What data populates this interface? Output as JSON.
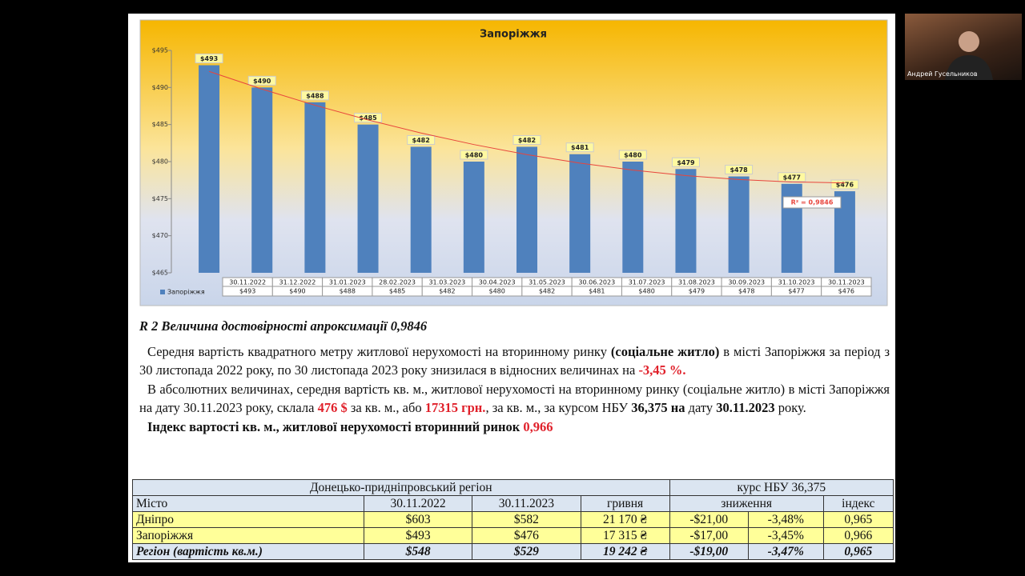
{
  "chart_data": {
    "type": "bar",
    "title": "Запоріжжя",
    "categories": [
      "30.11.2022",
      "31.12.2022",
      "31.01.2023",
      "28.02.2023",
      "31.03.2023",
      "30.04.2023",
      "31.05.2023",
      "30.06.2023",
      "31.07.2023",
      "31.08.2023",
      "30.09.2023",
      "31.10.2023",
      "30.11.2023"
    ],
    "series": [
      {
        "name": "Запоріжжя",
        "color": "#4f81bd",
        "values": [
          493,
          490,
          488,
          485,
          482,
          480,
          482,
          481,
          480,
          479,
          478,
          477,
          476
        ],
        "value_labels": [
          "$493",
          "$490",
          "$488",
          "$485",
          "$482",
          "$480",
          "$482",
          "$481",
          "$480",
          "$479",
          "$478",
          "$477",
          "$476"
        ]
      }
    ],
    "ylim": [
      465,
      495
    ],
    "yticks": [
      {
        "value": 465,
        "label": "$465"
      },
      {
        "value": 470,
        "label": "$470"
      },
      {
        "value": 475,
        "label": "$475"
      },
      {
        "value": 480,
        "label": "$480"
      },
      {
        "value": 485,
        "label": "$485"
      },
      {
        "value": 490,
        "label": "$490"
      },
      {
        "value": 495,
        "label": "$495"
      }
    ],
    "trendline": {
      "type": "polynomial",
      "color": "#e8453c",
      "label": "R² = 0,9846"
    }
  },
  "text": {
    "heading": "R 2 Величина достовірності апроксимації 0,9846",
    "paragraphs": [
      [
        {
          "t": "Середня вартість квадратного метру житлової нерухомості на вторинному ринку "
        },
        {
          "t": "(соціальне житло)",
          "s": "bold"
        },
        {
          "t": " в місті Запоріжжя за період з 30 листопада  2022 року, по 30 листопада 2023 року знизилася в відносних величинах на "
        },
        {
          "t": "-3,45 %.",
          "s": "red"
        }
      ],
      [
        {
          "t": "В абсолютних величинах, середня вартість кв. м., житлової нерухомості на вторинному ринку (соціальне житло) в місті Запоріжжя на дату 30.11.2023 року, склала "
        },
        {
          "t": "476 $",
          "s": "red"
        },
        {
          "t": " за кв. м., або "
        },
        {
          "t": "17315 грн.",
          "s": "red"
        },
        {
          "t": ", за кв. м., за курсом НБУ "
        },
        {
          "t": "36,375 на",
          "s": "bold"
        },
        {
          "t": " дату "
        },
        {
          "t": "30.11.2023",
          "s": "bold"
        },
        {
          "t": " року."
        }
      ],
      [
        {
          "t": "Індекс вартості кв. м., житлової нерухомості вторинний ринок ",
          "s": "bold"
        },
        {
          "t": "0,966",
          "s": "red"
        }
      ]
    ]
  },
  "table": {
    "groups": [
      "Донецько-придніпровський регіон",
      "курс НБУ 36,375"
    ],
    "header": [
      "Місто",
      "30.11.2022",
      "30.11.2023",
      "гривня",
      "зниження",
      "індекс"
    ],
    "rows": [
      [
        "Дніпро",
        "$603",
        "$582",
        "21 170 ₴",
        "-$21,00",
        "-3,48%",
        "0,965"
      ],
      [
        "Запоріжжя",
        "$493",
        "$476",
        "17 315 ₴",
        "-$17,00",
        "-3,45%",
        "0,966"
      ],
      [
        "Регіон (вартість кв.м.)",
        "$548",
        "$529",
        "19 242 ₴",
        "-$19,00",
        "-3,47%",
        "0,965"
      ]
    ]
  },
  "participant": {
    "name": "Андрей Гусельников"
  }
}
